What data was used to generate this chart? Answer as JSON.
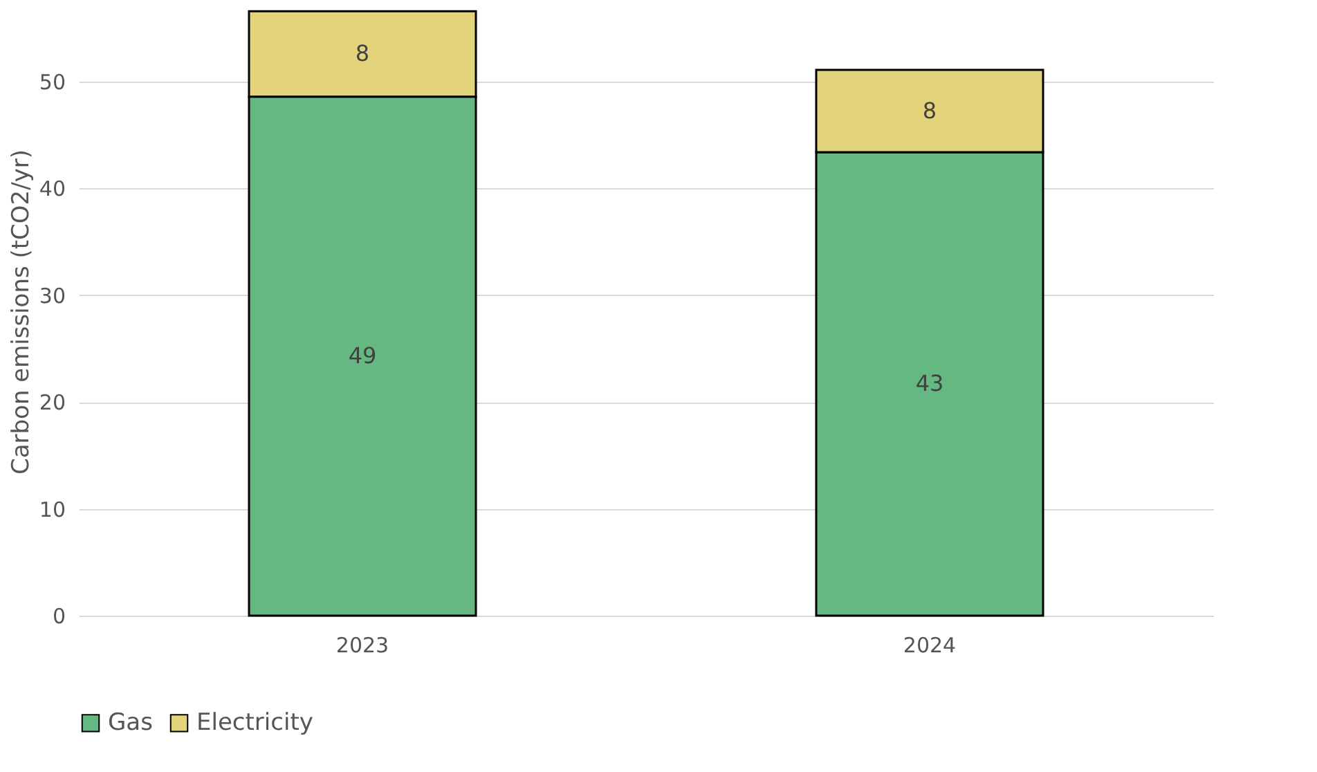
{
  "chart_data": {
    "type": "bar",
    "stacked": true,
    "ylabel": "Carbon emissions (tCO2/yr)",
    "categories": [
      "2023",
      "2024"
    ],
    "series": [
      {
        "name": "Gas",
        "color": "#65b882",
        "values": [
          48.6,
          43.4
        ],
        "value_labels": [
          "49",
          "43"
        ]
      },
      {
        "name": "Electricity",
        "color": "#e3d47b",
        "values": [
          8.0,
          7.7
        ],
        "value_labels": [
          "8",
          "8"
        ]
      }
    ],
    "ylim": [
      0,
      57
    ],
    "yticks": [
      0,
      10,
      20,
      30,
      40,
      50
    ],
    "grid": "y",
    "legend": "bottom"
  }
}
